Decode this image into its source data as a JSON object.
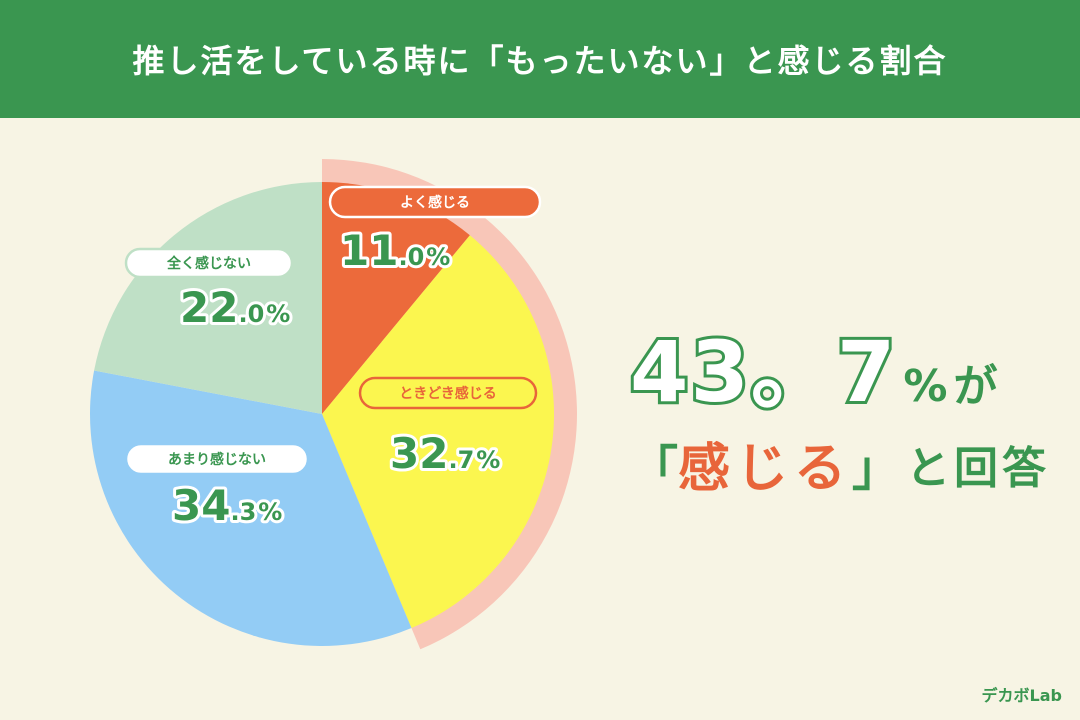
{
  "header": {
    "title": "推し活をしている時に「もったいない」と感じる割合"
  },
  "colors": {
    "header_bg": "#3a9650",
    "background": "#f7f4e4",
    "accent": "#e8653a",
    "highlight_ring": "#f8c6b8",
    "text_green": "#3a9650"
  },
  "chart_data": {
    "type": "pie",
    "start": "top, clockwise",
    "slices": [
      {
        "label": "よく感じる",
        "value": 11.0,
        "int": "11",
        "dec": ".0",
        "color": "#ec6a3b",
        "label_bg": "#ec6a3b",
        "label_fg": "#ffffff",
        "label_border": "#ec6a3b"
      },
      {
        "label": "ときどき感じる",
        "value": 32.7,
        "int": "32",
        "dec": ".7",
        "color": "#fbf64f",
        "label_bg": "#fbf64f",
        "label_fg": "#e8653a",
        "label_border": "#e8653a"
      },
      {
        "label": "あまり感じない",
        "value": 34.3,
        "int": "34",
        "dec": ".3",
        "color": "#93ccf5",
        "label_bg": "#ffffff",
        "label_fg": "#3a9650",
        "label_border": "#93ccf5"
      },
      {
        "label": "全く感じない",
        "value": 22.0,
        "int": "22",
        "dec": ".0",
        "color": "#bfe0c6",
        "label_bg": "#ffffff",
        "label_fg": "#3a9650",
        "label_border": "#bfe0c6"
      }
    ],
    "pct_suffix": "%",
    "highlight": {
      "slices": [
        "よく感じる",
        "ときどき感じる"
      ],
      "total": 43.7
    }
  },
  "summary": {
    "big_value": "43",
    "big_sep": "。",
    "big_dec": "7",
    "pct": "%",
    "ga": "が",
    "open_bracket": "「",
    "accent_text": "感じる",
    "close_bracket": "」",
    "tail": "と回答"
  },
  "logo": {
    "text": "デカボLab"
  }
}
